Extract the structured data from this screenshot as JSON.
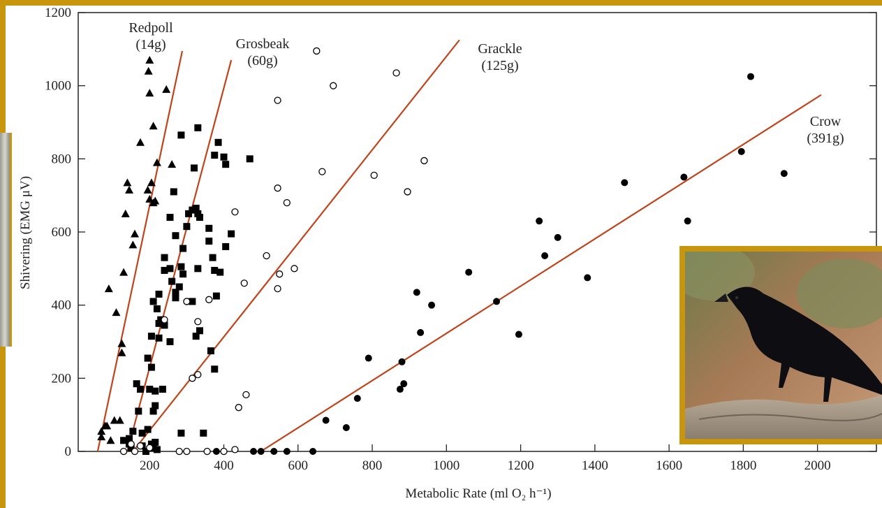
{
  "chart_data": {
    "type": "scatter",
    "xlabel": "Metabolic Rate (ml O₂ h⁻¹)",
    "ylabel": "Shivering (EMG μV)",
    "xlim": [
      0,
      2140
    ],
    "ylim": [
      0,
      1200
    ],
    "x_ticks": [
      200,
      400,
      600,
      800,
      1000,
      1200,
      1400,
      1600,
      1800,
      2000
    ],
    "y_ticks": [
      0,
      200,
      400,
      600,
      800,
      1000,
      1200
    ],
    "line_color": "#c0431a",
    "series": [
      {
        "name": "Redpoll",
        "label_line2": "(14g)",
        "marker": "triangle",
        "fit": [
          [
            60,
            0
          ],
          [
            288,
            1095
          ]
        ],
        "points": [
          [
            200,
            1070
          ],
          [
            197,
            1040
          ],
          [
            200,
            980
          ],
          [
            245,
            990
          ],
          [
            210,
            890
          ],
          [
            175,
            845
          ],
          [
            220,
            790
          ],
          [
            260,
            785
          ],
          [
            205,
            735
          ],
          [
            140,
            735
          ],
          [
            145,
            715
          ],
          [
            195,
            715
          ],
          [
            200,
            690
          ],
          [
            215,
            685
          ],
          [
            210,
            680
          ],
          [
            160,
            595
          ],
          [
            155,
            565
          ],
          [
            135,
            650
          ],
          [
            130,
            490
          ],
          [
            90,
            445
          ],
          [
            110,
            380
          ],
          [
            125,
            295
          ],
          [
            125,
            270
          ],
          [
            80,
            70
          ],
          [
            70,
            55
          ],
          [
            85,
            70
          ],
          [
            105,
            85
          ],
          [
            120,
            85
          ],
          [
            70,
            40
          ],
          [
            95,
            30
          ]
        ]
      },
      {
        "name": "Grosbeak",
        "label_line2": "(60g)",
        "marker": "square",
        "fit": [
          [
            140,
            0
          ],
          [
            420,
            1070
          ]
        ],
        "points": [
          [
            330,
            885
          ],
          [
            285,
            865
          ],
          [
            385,
            845
          ],
          [
            400,
            805
          ],
          [
            375,
            810
          ],
          [
            320,
            775
          ],
          [
            405,
            785
          ],
          [
            470,
            800
          ],
          [
            265,
            710
          ],
          [
            315,
            660
          ],
          [
            325,
            665
          ],
          [
            305,
            650
          ],
          [
            330,
            650
          ],
          [
            335,
            640
          ],
          [
            255,
            640
          ],
          [
            300,
            615
          ],
          [
            360,
            610
          ],
          [
            420,
            595
          ],
          [
            270,
            590
          ],
          [
            290,
            555
          ],
          [
            360,
            575
          ],
          [
            405,
            560
          ],
          [
            370,
            530
          ],
          [
            240,
            530
          ],
          [
            285,
            505
          ],
          [
            290,
            485
          ],
          [
            255,
            500
          ],
          [
            330,
            500
          ],
          [
            240,
            495
          ],
          [
            375,
            495
          ],
          [
            390,
            490
          ],
          [
            260,
            465
          ],
          [
            280,
            450
          ],
          [
            270,
            435
          ],
          [
            225,
            430
          ],
          [
            270,
            420
          ],
          [
            315,
            410
          ],
          [
            380,
            425
          ],
          [
            210,
            410
          ],
          [
            220,
            390
          ],
          [
            230,
            360
          ],
          [
            225,
            350
          ],
          [
            240,
            345
          ],
          [
            205,
            315
          ],
          [
            225,
            310
          ],
          [
            255,
            300
          ],
          [
            325,
            315
          ],
          [
            335,
            330
          ],
          [
            365,
            275
          ],
          [
            375,
            225
          ],
          [
            195,
            255
          ],
          [
            205,
            230
          ],
          [
            165,
            185
          ],
          [
            215,
            165
          ],
          [
            175,
            170
          ],
          [
            200,
            170
          ],
          [
            235,
            170
          ],
          [
            215,
            125
          ],
          [
            210,
            110
          ],
          [
            170,
            110
          ],
          [
            145,
            35
          ],
          [
            155,
            55
          ],
          [
            180,
            50
          ],
          [
            195,
            60
          ],
          [
            130,
            30
          ],
          [
            145,
            20
          ],
          [
            150,
            10
          ],
          [
            180,
            15
          ],
          [
            205,
            20
          ],
          [
            215,
            25
          ],
          [
            210,
            10
          ],
          [
            220,
            5
          ],
          [
            190,
            0
          ],
          [
            285,
            50
          ],
          [
            345,
            50
          ]
        ]
      },
      {
        "name": "Grackle",
        "label_line2": "(125g)",
        "marker": "open-circle",
        "fit": [
          [
            155,
            0
          ],
          [
            1035,
            1125
          ]
        ],
        "points": [
          [
            650,
            1095
          ],
          [
            865,
            1035
          ],
          [
            695,
            1000
          ],
          [
            545,
            960
          ],
          [
            940,
            795
          ],
          [
            665,
            765
          ],
          [
            805,
            755
          ],
          [
            895,
            710
          ],
          [
            545,
            720
          ],
          [
            570,
            680
          ],
          [
            430,
            655
          ],
          [
            515,
            535
          ],
          [
            590,
            500
          ],
          [
            550,
            485
          ],
          [
            455,
            460
          ],
          [
            545,
            445
          ],
          [
            360,
            415
          ],
          [
            300,
            410
          ],
          [
            240,
            360
          ],
          [
            330,
            355
          ],
          [
            330,
            210
          ],
          [
            315,
            200
          ],
          [
            460,
            155
          ],
          [
            440,
            120
          ],
          [
            150,
            20
          ],
          [
            175,
            15
          ],
          [
            200,
            10
          ],
          [
            130,
            0
          ],
          [
            160,
            0
          ],
          [
            280,
            0
          ],
          [
            300,
            0
          ],
          [
            355,
            0
          ],
          [
            400,
            0
          ],
          [
            430,
            5
          ]
        ]
      },
      {
        "name": "Crow",
        "label_line2": "(391g)",
        "marker": "filled-circle",
        "fit": [
          [
            500,
            0
          ],
          [
            2010,
            975
          ]
        ],
        "points": [
          [
            1820,
            1025
          ],
          [
            1795,
            820
          ],
          [
            1910,
            760
          ],
          [
            1640,
            750
          ],
          [
            1480,
            735
          ],
          [
            1650,
            630
          ],
          [
            1250,
            630
          ],
          [
            1300,
            585
          ],
          [
            1265,
            535
          ],
          [
            1060,
            490
          ],
          [
            1380,
            475
          ],
          [
            920,
            435
          ],
          [
            1135,
            410
          ],
          [
            960,
            400
          ],
          [
            930,
            325
          ],
          [
            1195,
            320
          ],
          [
            790,
            255
          ],
          [
            880,
            245
          ],
          [
            885,
            185
          ],
          [
            875,
            170
          ],
          [
            760,
            145
          ],
          [
            675,
            85
          ],
          [
            730,
            65
          ],
          [
            380,
            0
          ],
          [
            480,
            0
          ],
          [
            500,
            0
          ],
          [
            535,
            0
          ],
          [
            570,
            0
          ],
          [
            640,
            0
          ]
        ]
      }
    ]
  },
  "photo": {
    "subject": "crow",
    "accent": "#c8960c"
  }
}
